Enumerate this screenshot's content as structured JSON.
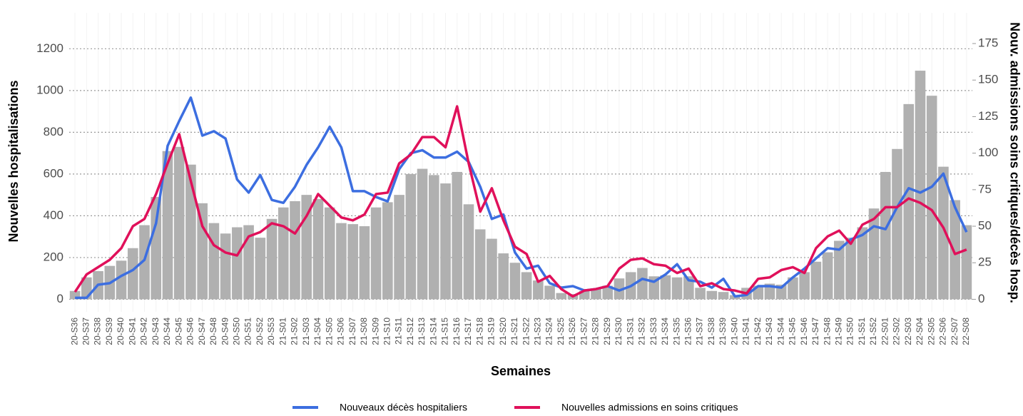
{
  "chart_data": {
    "type": "combo",
    "x_label": "Semaines",
    "y_label": "Nouvelles hospitalisations",
    "y2_label": "Nouv. admissions soins critiques/décès hosp.",
    "categories": [
      "20-S36",
      "20-S37",
      "20-S38",
      "20-S39",
      "20-S40",
      "20-S41",
      "20-S42",
      "20-S43",
      "20-S44",
      "20-S45",
      "20-S46",
      "20-S47",
      "20-S48",
      "20-S49",
      "20-S50",
      "20-S51",
      "20-S52",
      "20-S53",
      "21-S01",
      "21-S02",
      "21-S03",
      "21-S04",
      "21-S05",
      "21-S06",
      "21-S07",
      "21-S08",
      "21-S09",
      "21-S10",
      "21-S11",
      "21-S12",
      "21-S13",
      "21-S14",
      "21-S15",
      "21-S16",
      "21-S17",
      "21-S18",
      "21-S19",
      "21-S20",
      "21-S21",
      "21-S22",
      "21-S23",
      "21-S24",
      "21-S25",
      "21-S26",
      "21-S27",
      "21-S28",
      "21-S29",
      "21-S30",
      "21-S31",
      "21-S32",
      "21-S33",
      "21-S34",
      "21-S35",
      "21-S36",
      "21-S37",
      "21-S38",
      "21-S39",
      "21-S40",
      "21-S41",
      "21-S42",
      "21-S43",
      "21-S44",
      "21-S45",
      "21-S46",
      "21-S47",
      "21-S48",
      "21-S49",
      "21-S50",
      "21-S51",
      "21-S52",
      "22-S01",
      "22-S02",
      "22-S03",
      "22-S04",
      "22-S05",
      "22-S06",
      "22-S07",
      "22-S08"
    ],
    "series": [
      {
        "type": "bar",
        "color": "#b0b0b0",
        "values": [
          40,
          105,
          135,
          160,
          185,
          245,
          355,
          490,
          710,
          730,
          645,
          460,
          365,
          315,
          345,
          355,
          295,
          385,
          440,
          470,
          500,
          480,
          440,
          365,
          360,
          350,
          440,
          465,
          500,
          600,
          625,
          595,
          555,
          610,
          455,
          335,
          290,
          220,
          175,
          130,
          90,
          65,
          30,
          25,
          40,
          50,
          65,
          100,
          130,
          150,
          110,
          115,
          105,
          110,
          55,
          40,
          35,
          20,
          55,
          65,
          75,
          70,
          105,
          130,
          180,
          225,
          280,
          295,
          345,
          435,
          610,
          720,
          935,
          1095,
          975,
          635,
          475,
          355
        ]
      },
      {
        "type": "line",
        "name": "Nouveaux décès hospitaliers",
        "color": "#3c6ee0",
        "axis": "y2",
        "values": [
          1,
          1,
          10,
          11,
          16,
          20,
          27,
          52,
          105,
          122,
          138,
          112,
          115,
          110,
          82,
          73,
          85,
          68,
          66,
          77,
          92,
          104,
          118,
          104,
          74,
          74,
          70,
          67,
          89,
          100,
          102,
          97,
          97,
          101,
          94,
          77,
          55,
          58,
          32,
          21,
          23,
          11,
          8,
          9,
          6,
          7,
          9,
          6,
          9,
          14,
          12,
          17,
          24,
          13,
          12,
          8,
          14,
          2,
          3,
          9,
          9,
          8,
          15,
          21,
          28,
          35,
          34,
          41,
          44,
          50,
          48,
          63,
          76,
          73,
          77,
          86,
          63,
          46
        ]
      },
      {
        "type": "line",
        "name": "Nouvelles admissions en soins critiques",
        "color": "#e0105a",
        "axis": "y2",
        "values": [
          5,
          17,
          22,
          27,
          35,
          50,
          55,
          72,
          93,
          113,
          81,
          50,
          37,
          32,
          30,
          43,
          46,
          52,
          50,
          45,
          57,
          72,
          64,
          56,
          54,
          58,
          72,
          73,
          93,
          99,
          111,
          111,
          104,
          132,
          93,
          60,
          76,
          54,
          36,
          31,
          12,
          16,
          7,
          2,
          6,
          7,
          9,
          21,
          27,
          28,
          24,
          23,
          18,
          21,
          9,
          11,
          7,
          6,
          4,
          14,
          15,
          20,
          22,
          18,
          35,
          43,
          47,
          38,
          51,
          55,
          63,
          63,
          69,
          66,
          61,
          49,
          31,
          34
        ]
      }
    ],
    "ylim": [
      -60,
      1372
    ],
    "yticks": [
      0,
      200,
      400,
      600,
      800,
      1000,
      1200
    ],
    "y2lim": [
      -8.57,
      196
    ],
    "y2ticks": [
      0,
      25,
      50,
      75,
      100,
      125,
      150,
      175
    ],
    "grid": true,
    "legend": "bottom"
  }
}
